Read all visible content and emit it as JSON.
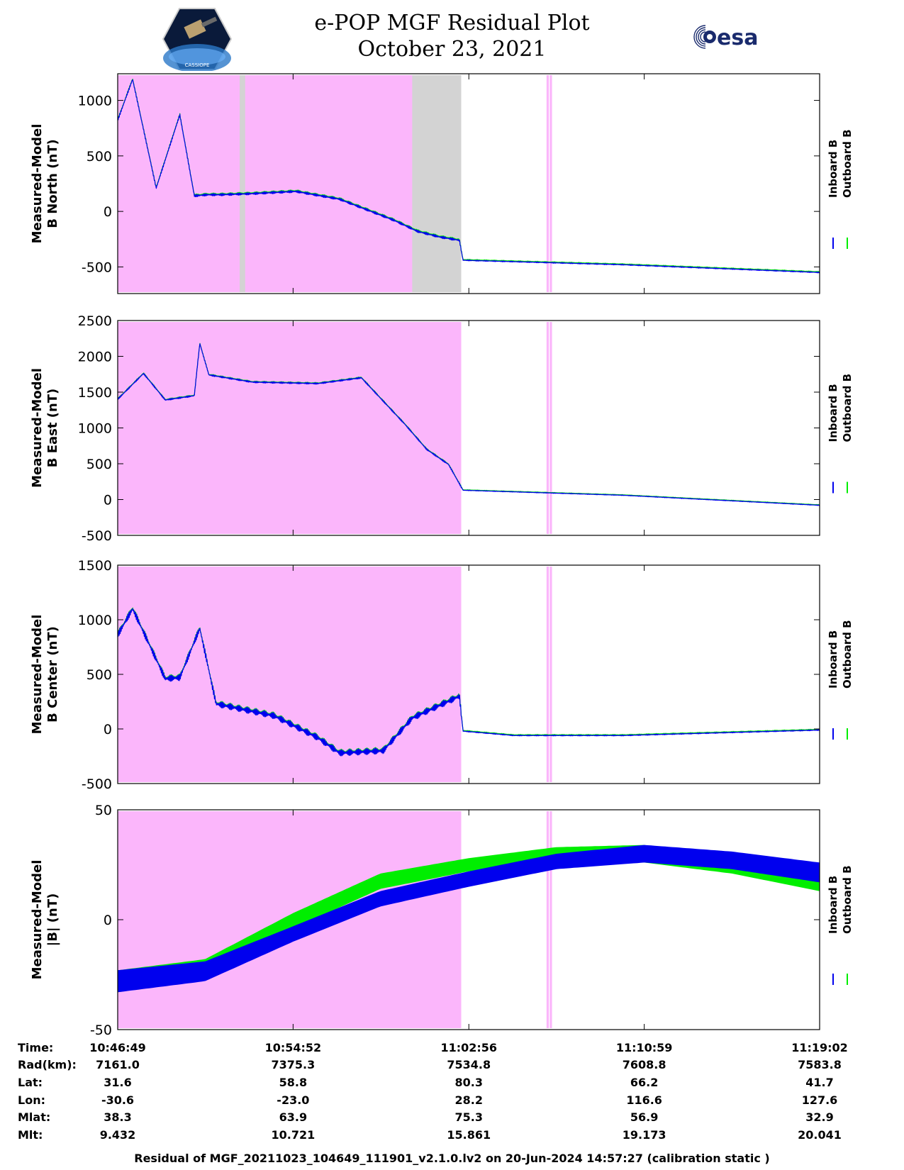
{
  "header": {
    "title_line1": "e-POP MGF Residual Plot",
    "title_line2": "October 23, 2021",
    "left_logo_text": "CASSIOPE",
    "right_logo_text": "esa"
  },
  "colors": {
    "inboard": "#0000ee",
    "outboard": "#00ee00",
    "shade_pink": "#fbb6fb",
    "shade_gray": "#d3d3d3"
  },
  "legend": {
    "inboard": "Inboard B",
    "outboard": "Outboard B"
  },
  "chart_data": [
    {
      "type": "line",
      "ylabel": "Measured-Model\nB North (nT)",
      "yticks": [
        -500,
        0,
        500,
        1000
      ],
      "ylim": [
        -740,
        1240
      ],
      "x": [
        "10:46:49",
        "10:47:30",
        "10:48:35",
        "10:49:40",
        "10:50:20",
        "10:50:55",
        "10:51:30",
        "10:53:00",
        "10:55:00",
        "10:57:00",
        "10:59:30",
        "11:00:35",
        "11:01:35",
        "11:02:30",
        "11:02:40",
        "11:10:00",
        "11:19:02"
      ],
      "series": [
        {
          "name": "Inboard B",
          "values": [
            820,
            1190,
            210,
            870,
            140,
            150,
            150,
            160,
            180,
            110,
            -80,
            -180,
            -230,
            -260,
            -440,
            -480,
            -550
          ]
        },
        {
          "name": "Outboard B",
          "values": [
            820,
            1190,
            210,
            870,
            140,
            150,
            150,
            160,
            180,
            110,
            -80,
            -180,
            -230,
            -260,
            -440,
            -480,
            -550
          ]
        }
      ],
      "shading": [
        {
          "color": "pink",
          "from": "10:46:49",
          "to": "11:02:35"
        },
        {
          "color": "gray",
          "from": "10:52:25",
          "to": "10:52:40"
        },
        {
          "color": "gray",
          "from": "11:00:20",
          "to": "11:02:35"
        },
        {
          "color": "pink",
          "from": "11:06:30",
          "to": "11:06:45"
        }
      ]
    },
    {
      "type": "line",
      "ylabel": "Measured-Model\nB East (nT)",
      "yticks": [
        -500,
        0,
        500,
        1000,
        1500,
        2000,
        2500
      ],
      "ylim": [
        -500,
        2500
      ],
      "x": [
        "10:46:49",
        "10:48:00",
        "10:49:00",
        "10:50:20",
        "10:50:35",
        "10:51:00",
        "10:53:00",
        "10:56:00",
        "10:58:00",
        "11:00:00",
        "11:01:00",
        "11:02:00",
        "11:02:40",
        "11:10:00",
        "11:19:02"
      ],
      "series": [
        {
          "name": "Inboard B",
          "values": [
            1400,
            1760,
            1390,
            1450,
            2180,
            1740,
            1640,
            1620,
            1700,
            1050,
            700,
            490,
            130,
            60,
            -80
          ]
        },
        {
          "name": "Outboard B",
          "values": [
            1400,
            1760,
            1390,
            1450,
            2180,
            1740,
            1640,
            1620,
            1700,
            1050,
            700,
            490,
            130,
            60,
            -80
          ]
        }
      ],
      "shading": [
        {
          "color": "pink",
          "from": "10:46:49",
          "to": "11:02:35"
        },
        {
          "color": "pink",
          "from": "11:06:30",
          "to": "11:06:45"
        }
      ]
    },
    {
      "type": "line",
      "ylabel": "Measured-Model\nB Center (nT)",
      "yticks": [
        -500,
        0,
        500,
        1000,
        1500
      ],
      "ylim": [
        -500,
        1500
      ],
      "x": [
        "10:46:49",
        "10:47:30",
        "10:49:00",
        "10:49:40",
        "10:50:35",
        "10:51:20",
        "10:54:00",
        "10:56:00",
        "10:57:00",
        "10:59:00",
        "11:00:20",
        "11:02:30",
        "11:02:40",
        "11:05:00",
        "11:10:00",
        "11:19:02"
      ],
      "series": [
        {
          "name": "Inboard B",
          "values": [
            860,
            1100,
            460,
            470,
            920,
            230,
            120,
            -80,
            -220,
            -200,
            100,
            300,
            -20,
            -60,
            -60,
            -10
          ]
        },
        {
          "name": "Outboard B",
          "values": [
            860,
            1100,
            460,
            470,
            920,
            230,
            120,
            -80,
            -220,
            -200,
            100,
            300,
            -20,
            -60,
            -60,
            -10
          ]
        }
      ],
      "shading": [
        {
          "color": "pink",
          "from": "10:46:49",
          "to": "11:02:35"
        },
        {
          "color": "pink",
          "from": "11:06:30",
          "to": "11:06:45"
        }
      ]
    },
    {
      "type": "area",
      "ylabel": "Measured-Model\n|B| (nT)",
      "yticks": [
        -50,
        0,
        50
      ],
      "ylim": [
        -50,
        50
      ],
      "x": [
        "10:46:49",
        "10:50:49",
        "10:54:52",
        "10:58:52",
        "11:02:56",
        "11:06:57",
        "11:10:59",
        "11:15:00",
        "11:19:02"
      ],
      "series": [
        {
          "name": "Inboard B",
          "lower": [
            -33,
            -28,
            -10,
            6,
            15,
            23,
            26,
            23,
            17
          ],
          "upper": [
            -23,
            -19,
            -3,
            13,
            22,
            30,
            34,
            31,
            26
          ]
        },
        {
          "name": "Outboard B",
          "lower": [
            -33,
            -27,
            -4,
            14,
            22,
            27,
            26,
            21,
            13
          ],
          "upper": [
            -23,
            -18,
            3,
            21,
            28,
            33,
            34,
            27,
            19
          ]
        }
      ],
      "shading": [
        {
          "color": "pink",
          "from": "10:46:49",
          "to": "11:02:35"
        },
        {
          "color": "pink",
          "from": "11:06:30",
          "to": "11:06:45"
        }
      ]
    }
  ],
  "axis_table": {
    "labels": [
      "Time:",
      "Rad(km):",
      "Lat:",
      "Lon:",
      "Mlat:",
      "Mlt:"
    ],
    "columns": [
      [
        "10:46:49",
        "7161.0",
        "31.6",
        "-30.6",
        "38.3",
        "9.432"
      ],
      [
        "10:54:52",
        "7375.3",
        "58.8",
        "-23.0",
        "63.9",
        "10.721"
      ],
      [
        "11:02:56",
        "7534.8",
        "80.3",
        "28.2",
        "75.3",
        "15.861"
      ],
      [
        "11:10:59",
        "7608.8",
        "66.2",
        "116.6",
        "56.9",
        "19.173"
      ],
      [
        "11:19:02",
        "7583.8",
        "41.7",
        "127.6",
        "32.9",
        "20.041"
      ]
    ]
  },
  "footer": "Residual of MGF_20211023_104649_111901_v2.1.0.lv2 on 20-Jun-2024 14:57:27 (calibration static )"
}
